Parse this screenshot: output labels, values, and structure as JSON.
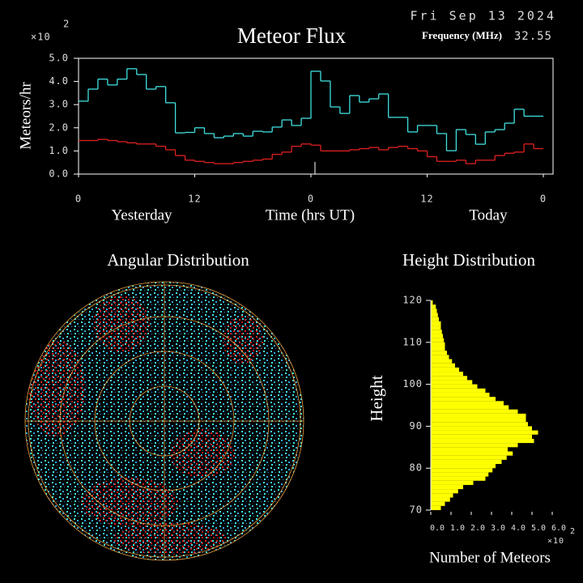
{
  "date": "Fri Sep 13 2024",
  "frequency_label": "Frequency (MHz)",
  "frequency": "32.55",
  "chart_data": [
    {
      "type": "line",
      "title": "Meteor Flux",
      "ylabel": "Meteors/hr",
      "ymultiplier": "×10",
      "ymultiplier_exp": "2",
      "x_period_labels": [
        "Yesterday",
        "Time (hrs UT)",
        "Today"
      ],
      "x": [
        0,
        1,
        2,
        3,
        4,
        5,
        6,
        7,
        8,
        9,
        10,
        11,
        12,
        13,
        14,
        15,
        16,
        17,
        18,
        19,
        20,
        21,
        22,
        23,
        24,
        25,
        26,
        27,
        28,
        29,
        30,
        31,
        32,
        33,
        34,
        35,
        36,
        37,
        38,
        39,
        40,
        41,
        42,
        43,
        44,
        45,
        46,
        47
      ],
      "series": [
        {
          "color": "#40e0e0",
          "values": [
            3.15,
            3.67,
            4.1,
            3.85,
            4.1,
            4.55,
            4.3,
            3.67,
            3.78,
            3.08,
            1.78,
            1.8,
            2.0,
            1.75,
            1.57,
            1.64,
            1.75,
            1.64,
            1.85,
            1.82,
            2.03,
            2.34,
            2.1,
            2.41,
            4.44,
            4.02,
            2.9,
            2.62,
            3.39,
            3.11,
            3.25,
            3.46,
            2.45,
            2.45,
            1.82,
            2.1,
            2.1,
            1.75,
            1.01,
            1.92,
            1.71,
            1.29,
            1.82,
            1.92,
            2.2,
            2.8,
            2.5,
            2.5
          ]
        },
        {
          "color": "#e02020",
          "values": [
            1.45,
            1.45,
            1.5,
            1.45,
            1.4,
            1.35,
            1.3,
            1.3,
            1.2,
            1.05,
            0.8,
            0.6,
            0.55,
            0.5,
            0.45,
            0.45,
            0.5,
            0.55,
            0.6,
            0.65,
            0.85,
            0.95,
            1.2,
            1.3,
            1.25,
            1.0,
            1.0,
            1.0,
            1.05,
            1.1,
            1.15,
            1.05,
            1.15,
            1.2,
            1.1,
            1.0,
            0.75,
            0.55,
            0.55,
            0.6,
            0.45,
            0.6,
            0.6,
            0.8,
            0.9,
            0.95,
            1.3,
            1.1
          ]
        }
      ],
      "xlim": [
        0,
        49
      ],
      "xticks": [
        0,
        12,
        {
          "value": 24,
          "label": "0"
        },
        {
          "value": 36,
          "label": "12"
        },
        {
          "value": 48,
          "label": "0"
        }
      ],
      "ylim": [
        0,
        5
      ],
      "yticks": [
        {
          "value": 0,
          "label": "0.0"
        },
        {
          "value": 1,
          "label": "1.0"
        },
        {
          "value": 2,
          "label": "2.0"
        },
        {
          "value": 3,
          "label": "3.0"
        },
        {
          "value": 4,
          "label": "4.0"
        },
        {
          "value": 5,
          "label": "5.0"
        }
      ]
    },
    {
      "type": "polar",
      "title": "Angular Distribution"
    },
    {
      "type": "histogram",
      "title": "Height Distribution",
      "ylabel": "Height",
      "xlabel": "Number of Meteors",
      "xmultiplier": "×10",
      "xmultiplier_exp": "2",
      "color": "#ffff00",
      "bins": [
        70,
        71,
        72,
        73,
        74,
        75,
        76,
        77,
        78,
        79,
        80,
        81,
        82,
        83,
        84,
        85,
        86,
        87,
        88,
        89,
        90,
        91,
        92,
        93,
        94,
        95,
        96,
        97,
        98,
        99,
        100,
        101,
        102,
        103,
        104,
        105,
        106,
        107,
        108,
        109,
        110,
        111,
        112,
        113,
        114,
        115,
        116,
        117,
        118,
        119,
        120
      ],
      "values": [
        0.5,
        0.7,
        0.95,
        1.1,
        1.35,
        1.6,
        2.1,
        2.7,
        2.85,
        3.05,
        3.2,
        3.5,
        3.75,
        4.05,
        3.8,
        4.3,
        5.1,
        5.0,
        5.3,
        5.0,
        4.8,
        4.7,
        4.7,
        4.3,
        3.85,
        3.6,
        3.2,
        2.9,
        2.7,
        2.3,
        2.05,
        1.8,
        1.6,
        1.4,
        1.2,
        1.05,
        0.9,
        0.8,
        0.7,
        0.7,
        0.65,
        0.6,
        0.55,
        0.5,
        0.5,
        0.4,
        0.35,
        0.3,
        0.25,
        0.1
      ],
      "xlim": [
        0,
        6
      ],
      "ylim": [
        70,
        120
      ],
      "xticks": [
        {
          "value": 0,
          "label": "0.0"
        },
        {
          "value": 1,
          "label": "1.0"
        },
        {
          "value": 2,
          "label": "2.0"
        },
        {
          "value": 3,
          "label": "3.0"
        },
        {
          "value": 4,
          "label": "4.0"
        },
        {
          "value": 5,
          "label": "5.0"
        },
        {
          "value": 6,
          "label": "6.0"
        }
      ],
      "yticks": [
        70,
        80,
        90,
        100,
        110,
        120
      ]
    }
  ]
}
